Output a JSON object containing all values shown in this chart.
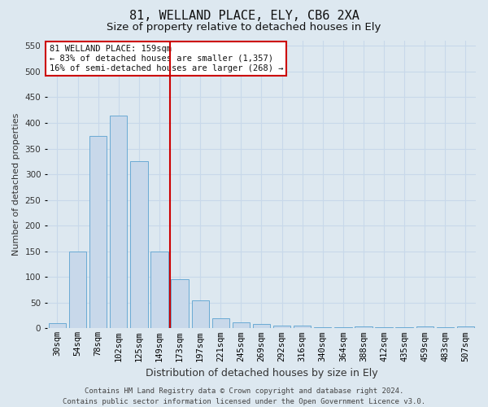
{
  "title": "81, WELLAND PLACE, ELY, CB6 2XA",
  "subtitle": "Size of property relative to detached houses in Ely",
  "xlabel": "Distribution of detached houses by size in Ely",
  "ylabel": "Number of detached properties",
  "categories": [
    "30sqm",
    "54sqm",
    "78sqm",
    "102sqm",
    "125sqm",
    "149sqm",
    "173sqm",
    "197sqm",
    "221sqm",
    "245sqm",
    "269sqm",
    "292sqm",
    "316sqm",
    "340sqm",
    "364sqm",
    "388sqm",
    "412sqm",
    "435sqm",
    "459sqm",
    "483sqm",
    "507sqm"
  ],
  "values": [
    10,
    150,
    375,
    415,
    325,
    150,
    95,
    55,
    20,
    12,
    8,
    6,
    5,
    2,
    2,
    3,
    2,
    2,
    3,
    2,
    3
  ],
  "bar_color": "#c8d8ea",
  "bar_edge_color": "#6aaad4",
  "vline_x": 5.5,
  "vline_color": "#cc0000",
  "annotation_text": "81 WELLAND PLACE: 159sqm\n← 83% of detached houses are smaller (1,357)\n16% of semi-detached houses are larger (268) →",
  "annotation_box_color": "#ffffff",
  "annotation_box_edge_color": "#cc0000",
  "ylim": [
    0,
    560
  ],
  "yticks": [
    0,
    50,
    100,
    150,
    200,
    250,
    300,
    350,
    400,
    450,
    500,
    550
  ],
  "grid_color": "#c8d8ea",
  "background_color": "#dde8f0",
  "plot_bg_color": "#dde8f0",
  "footer": "Contains HM Land Registry data © Crown copyright and database right 2024.\nContains public sector information licensed under the Open Government Licence v3.0.",
  "title_fontsize": 11,
  "subtitle_fontsize": 9.5,
  "xlabel_fontsize": 9,
  "ylabel_fontsize": 8,
  "tick_fontsize": 7.5,
  "annotation_fontsize": 7.5,
  "footer_fontsize": 6.5
}
